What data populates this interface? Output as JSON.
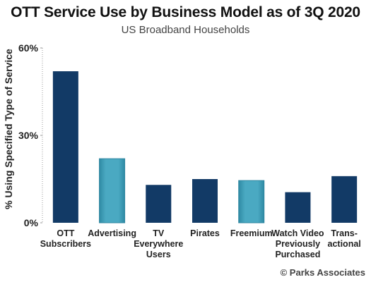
{
  "chart_data": {
    "type": "bar",
    "title": "OTT Service Use by Business Model as of 3Q 2020",
    "subtitle": "US Broadband Households",
    "ylabel": "% Using Specified Type of Service",
    "xlabel": "",
    "ylim": [
      0,
      60
    ],
    "yticks": [
      "0%",
      "30%",
      "60%"
    ],
    "ytick_values": [
      0,
      30,
      60
    ],
    "categories": [
      [
        "OTT",
        "Subscribers"
      ],
      [
        "Advertising"
      ],
      [
        "TV",
        "Everywhere",
        "Users"
      ],
      [
        "Pirates"
      ],
      [
        "Freemium"
      ],
      [
        "Watch Video",
        "Previously",
        "Purchased"
      ],
      [
        "Trans-",
        "actional"
      ]
    ],
    "values": [
      52,
      22,
      13,
      15,
      14.5,
      10.5,
      16
    ],
    "bar_colors": [
      "#123a66",
      "#3a99b4",
      "#123a66",
      "#123a66",
      "#3a99b4",
      "#123a66",
      "#123a66"
    ],
    "grid": false,
    "legend": "none",
    "source": "© Parks Associates"
  }
}
